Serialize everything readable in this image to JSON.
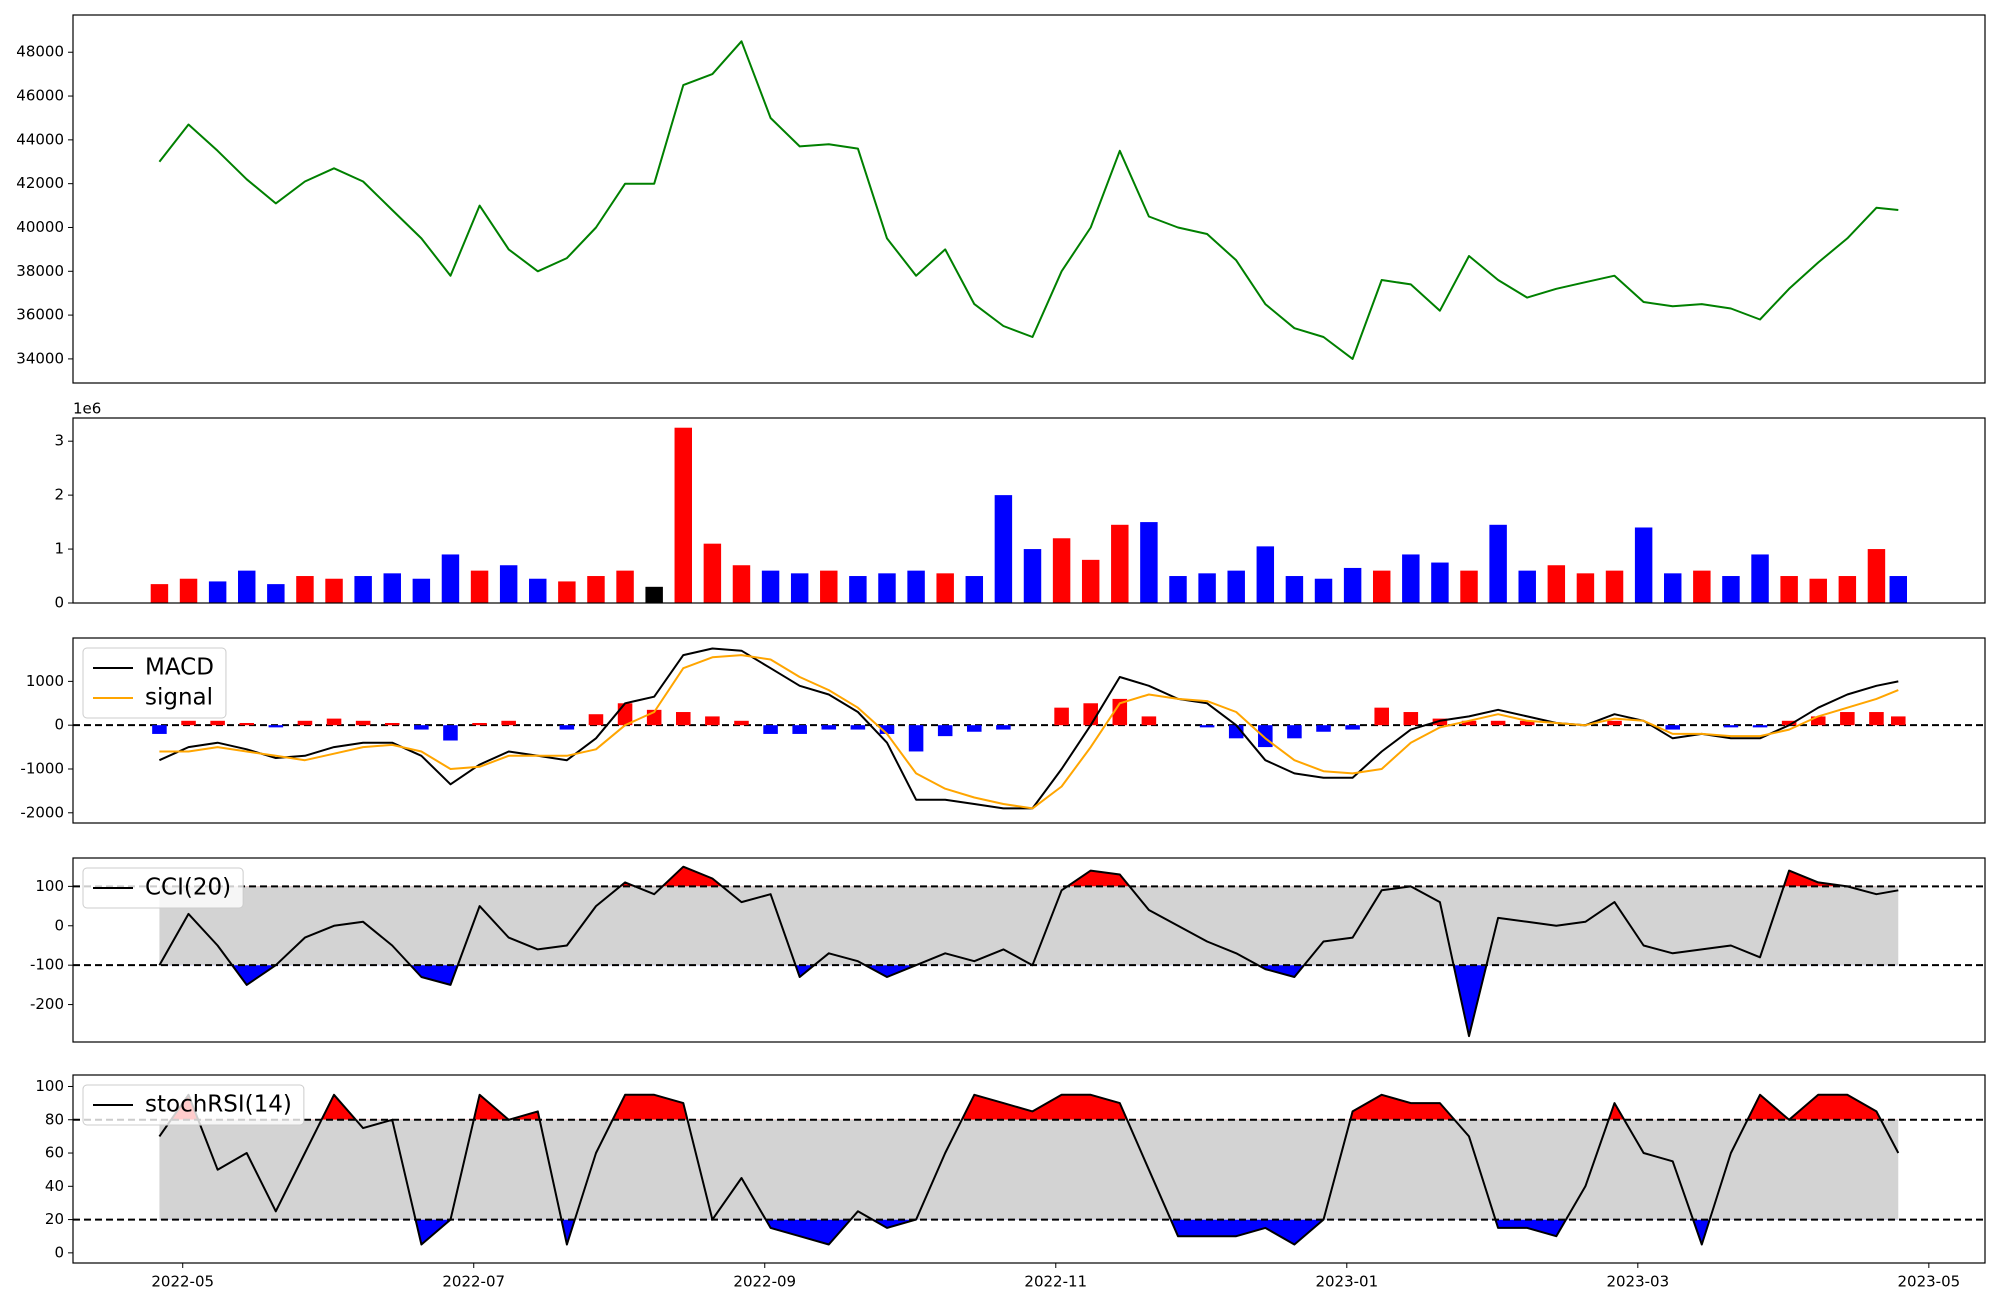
{
  "chart_data": [
    {
      "type": "line",
      "color": "#008000",
      "x": [
        4.84,
        5.04,
        5.24,
        5.44,
        5.64,
        5.84,
        6.04,
        6.24,
        6.44,
        6.64,
        6.84,
        7.04,
        7.24,
        7.44,
        7.64,
        7.84,
        8.04,
        8.24,
        8.44,
        8.64,
        8.84,
        9.04,
        9.24,
        9.44,
        9.64,
        9.84,
        10.04,
        10.24,
        10.44,
        10.64,
        10.84,
        11.04,
        11.24,
        11.44,
        11.64,
        11.84,
        12.04,
        12.24,
        12.44,
        12.64,
        12.84,
        13.04,
        13.24,
        13.44,
        13.64,
        13.84,
        14.04,
        14.24,
        14.44,
        14.64,
        14.84,
        15.04,
        15.24,
        15.44,
        15.64,
        15.84,
        16.04,
        16.24,
        16.44,
        16.64,
        16.79
      ],
      "values": [
        43000,
        44700,
        43500,
        42200,
        41100,
        42100,
        42700,
        42100,
        40800,
        39500,
        37800,
        41000,
        39000,
        38000,
        38600,
        40000,
        42000,
        42000,
        46500,
        47000,
        48500,
        45000,
        43700,
        43800,
        43600,
        39500,
        37800,
        39000,
        36500,
        35500,
        35000,
        38000,
        40000,
        43500,
        40500,
        40000,
        39700,
        38500,
        36500,
        35400,
        35000,
        34000,
        37600,
        37400,
        36200,
        38700,
        37600,
        36800,
        37200,
        37500,
        37800,
        36600,
        36400,
        36500,
        36300,
        35800,
        37200,
        38400,
        39500,
        40900,
        40800
      ],
      "xlim": [
        4.246,
        17.386
      ],
      "ylim": [
        32900,
        49700
      ],
      "yticks": [
        34000,
        36000,
        38000,
        40000,
        42000,
        44000,
        46000,
        48000
      ]
    },
    {
      "type": "bar",
      "offset_label": "1e6",
      "x": [
        4.84,
        5.04,
        5.24,
        5.44,
        5.64,
        5.84,
        6.04,
        6.24,
        6.44,
        6.64,
        6.84,
        7.04,
        7.24,
        7.44,
        7.64,
        7.84,
        8.04,
        8.24,
        8.44,
        8.64,
        8.84,
        9.04,
        9.24,
        9.44,
        9.64,
        9.84,
        10.04,
        10.24,
        10.44,
        10.64,
        10.84,
        11.04,
        11.24,
        11.44,
        11.64,
        11.84,
        12.04,
        12.24,
        12.44,
        12.64,
        12.84,
        13.04,
        13.24,
        13.44,
        13.64,
        13.84,
        14.04,
        14.24,
        14.44,
        14.64,
        14.84,
        15.04,
        15.24,
        15.44,
        15.64,
        15.84,
        16.04,
        16.24,
        16.44,
        16.64,
        16.79
      ],
      "values": [
        0.35,
        0.45,
        0.4,
        0.6,
        0.35,
        0.5,
        0.45,
        0.5,
        0.55,
        0.45,
        0.9,
        0.6,
        0.7,
        0.45,
        0.4,
        0.5,
        0.6,
        0.3,
        3.25,
        1.1,
        0.7,
        0.6,
        0.55,
        0.6,
        0.5,
        0.55,
        0.6,
        0.55,
        0.5,
        2.0,
        1.0,
        1.2,
        0.8,
        1.45,
        1.5,
        0.5,
        0.55,
        0.6,
        1.05,
        0.5,
        0.45,
        0.65,
        0.6,
        0.9,
        0.75,
        0.6,
        1.45,
        0.6,
        0.7,
        0.55,
        0.6,
        1.4,
        0.55,
        0.6,
        0.5,
        0.9,
        0.5,
        0.45,
        0.5,
        1.0,
        0.5
      ],
      "colors": [
        "red",
        "red",
        "blue",
        "blue",
        "blue",
        "red",
        "red",
        "blue",
        "blue",
        "blue",
        "blue",
        "red",
        "blue",
        "blue",
        "red",
        "red",
        "red",
        "black",
        "red",
        "red",
        "red",
        "blue",
        "blue",
        "red",
        "blue",
        "blue",
        "blue",
        "red",
        "blue",
        "blue",
        "blue",
        "red",
        "red",
        "red",
        "blue",
        "blue",
        "blue",
        "blue",
        "blue",
        "blue",
        "blue",
        "blue",
        "red",
        "blue",
        "blue",
        "red",
        "blue",
        "blue",
        "red",
        "red",
        "red",
        "blue",
        "blue",
        "red",
        "blue",
        "blue",
        "red",
        "red",
        "red",
        "red",
        "blue"
      ],
      "xlim": [
        4.246,
        17.386
      ],
      "ylim": [
        0,
        3.43
      ],
      "yticks": [
        0,
        1,
        2,
        3
      ]
    },
    {
      "type": "line",
      "x": [
        4.84,
        5.04,
        5.24,
        5.44,
        5.64,
        5.84,
        6.04,
        6.24,
        6.44,
        6.64,
        6.84,
        7.04,
        7.24,
        7.44,
        7.64,
        7.84,
        8.04,
        8.24,
        8.44,
        8.64,
        8.84,
        9.04,
        9.24,
        9.44,
        9.64,
        9.84,
        10.04,
        10.24,
        10.44,
        10.64,
        10.84,
        11.04,
        11.24,
        11.44,
        11.64,
        11.84,
        12.04,
        12.24,
        12.44,
        12.64,
        12.84,
        13.04,
        13.24,
        13.44,
        13.64,
        13.84,
        14.04,
        14.24,
        14.44,
        14.64,
        14.84,
        15.04,
        15.24,
        15.44,
        15.64,
        15.84,
        16.04,
        16.24,
        16.44,
        16.64,
        16.79
      ],
      "series": [
        {
          "name": "MACD",
          "color": "#000000",
          "values": [
            -800,
            -500,
            -400,
            -550,
            -750,
            -700,
            -500,
            -400,
            -400,
            -700,
            -1350,
            -900,
            -600,
            -700,
            -800,
            -300,
            500,
            650,
            1600,
            1750,
            1700,
            1300,
            900,
            700,
            300,
            -400,
            -1700,
            -1700,
            -1800,
            -1900,
            -1900,
            -1000,
            0,
            1100,
            900,
            600,
            500,
            0,
            -800,
            -1100,
            -1200,
            -1200,
            -600,
            -100,
            100,
            200,
            350,
            200,
            50,
            0,
            250,
            100,
            -300,
            -200,
            -300,
            -300,
            0,
            400,
            700,
            900,
            1000
          ]
        },
        {
          "name": "signal",
          "color": "#ffa500",
          "values": [
            -600,
            -600,
            -500,
            -600,
            -700,
            -800,
            -650,
            -500,
            -450,
            -600,
            -1000,
            -950,
            -700,
            -700,
            -700,
            -550,
            0,
            300,
            1300,
            1550,
            1600,
            1500,
            1100,
            800,
            400,
            -200,
            -1100,
            -1450,
            -1650,
            -1800,
            -1900,
            -1400,
            -500,
            500,
            700,
            600,
            550,
            300,
            -300,
            -800,
            -1050,
            -1100,
            -1000,
            -400,
            -50,
            100,
            250,
            100,
            50,
            0,
            150,
            100,
            -200,
            -200,
            -250,
            -250,
            -100,
            200,
            400,
            600,
            800
          ]
        }
      ],
      "histogram": {
        "pos_color": "#ff0000",
        "neg_color": "#0000ff",
        "values": [
          -200,
          100,
          100,
          50,
          -50,
          100,
          150,
          100,
          50,
          -100,
          -350,
          50,
          100,
          0,
          -100,
          250,
          500,
          350,
          300,
          200,
          100,
          -200,
          -200,
          -100,
          -100,
          -200,
          -600,
          -250,
          -150,
          -100,
          0,
          400,
          500,
          600,
          200,
          0,
          -50,
          -300,
          -500,
          -300,
          -150,
          -100,
          400,
          300,
          150,
          100,
          100,
          100,
          0,
          0,
          100,
          0,
          -100,
          0,
          -50,
          -50,
          100,
          200,
          300,
          300,
          200
        ]
      },
      "thresholds": [
        0
      ],
      "xlim": [
        4.246,
        17.386
      ],
      "ylim": [
        -2233,
        1990
      ],
      "yticks": [
        -2000,
        -1000,
        0,
        1000
      ],
      "legend": "upper left"
    },
    {
      "type": "line",
      "x": [
        4.84,
        5.04,
        5.24,
        5.44,
        5.64,
        5.84,
        6.04,
        6.24,
        6.44,
        6.64,
        6.84,
        7.04,
        7.24,
        7.44,
        7.64,
        7.84,
        8.04,
        8.24,
        8.44,
        8.64,
        8.84,
        9.04,
        9.24,
        9.44,
        9.64,
        9.84,
        10.04,
        10.24,
        10.44,
        10.64,
        10.84,
        11.04,
        11.24,
        11.44,
        11.64,
        11.84,
        12.04,
        12.24,
        12.44,
        12.64,
        12.84,
        13.04,
        13.24,
        13.44,
        13.64,
        13.84,
        14.04,
        14.24,
        14.44,
        14.64,
        14.84,
        15.04,
        15.24,
        15.44,
        15.64,
        15.84,
        16.04,
        16.24,
        16.44,
        16.64,
        16.79
      ],
      "series": [
        {
          "name": "CCI(20)",
          "color": "#000000",
          "values": [
            -100,
            30,
            -50,
            -150,
            -100,
            -30,
            0,
            10,
            -50,
            -130,
            -150,
            50,
            -30,
            -60,
            -50,
            50,
            110,
            80,
            150,
            120,
            60,
            80,
            -130,
            -70,
            -90,
            -130,
            -100,
            -70,
            -90,
            -60,
            -100,
            90,
            140,
            130,
            40,
            0,
            -40,
            -70,
            -110,
            -130,
            -40,
            -30,
            90,
            100,
            60,
            -280,
            20,
            10,
            0,
            10,
            60,
            -50,
            -70,
            -60,
            -50,
            -80,
            140,
            110,
            100,
            80,
            90
          ]
        }
      ],
      "thresholds": [
        -100,
        100
      ],
      "band_color": "#d3d3d3",
      "above_color": "#ff0000",
      "below_color": "#0000ff",
      "xlim": [
        4.246,
        17.386
      ],
      "ylim": [
        -295,
        172
      ],
      "yticks": [
        -200,
        -100,
        0,
        100
      ],
      "legend": "upper left"
    },
    {
      "type": "line",
      "x": [
        4.84,
        5.04,
        5.24,
        5.44,
        5.64,
        5.84,
        6.04,
        6.24,
        6.44,
        6.64,
        6.84,
        7.04,
        7.24,
        7.44,
        7.64,
        7.84,
        8.04,
        8.24,
        8.44,
        8.64,
        8.84,
        9.04,
        9.24,
        9.44,
        9.64,
        9.84,
        10.04,
        10.24,
        10.44,
        10.64,
        10.84,
        11.04,
        11.24,
        11.44,
        11.64,
        11.84,
        12.04,
        12.24,
        12.44,
        12.64,
        12.84,
        13.04,
        13.24,
        13.44,
        13.64,
        13.84,
        14.04,
        14.24,
        14.44,
        14.64,
        14.84,
        15.04,
        15.24,
        15.44,
        15.64,
        15.84,
        16.04,
        16.24,
        16.44,
        16.64,
        16.79
      ],
      "series": [
        {
          "name": "stochRSI(14)",
          "color": "#000000",
          "values": [
            70,
            95,
            50,
            60,
            25,
            60,
            95,
            75,
            80,
            5,
            20,
            95,
            80,
            85,
            5,
            60,
            95,
            95,
            90,
            20,
            45,
            15,
            10,
            5,
            25,
            15,
            20,
            60,
            95,
            90,
            85,
            95,
            95,
            90,
            50,
            10,
            10,
            10,
            15,
            5,
            20,
            85,
            95,
            90,
            90,
            70,
            15,
            15,
            10,
            40,
            90,
            60,
            55,
            5,
            60,
            95,
            80,
            95,
            95,
            85,
            60
          ]
        }
      ],
      "thresholds": [
        20,
        80
      ],
      "band_color": "#d3d3d3",
      "above_color": "#ff0000",
      "below_color": "#0000ff",
      "xlim": [
        4.246,
        17.386
      ],
      "ylim": [
        -6.1,
        106.9
      ],
      "yticks": [
        0,
        20,
        40,
        60,
        80,
        100
      ],
      "legend": "upper left",
      "xticks": [
        {
          "value": 5,
          "label": "2022-05"
        },
        {
          "value": 7,
          "label": "2022-07"
        },
        {
          "value": 9,
          "label": "2022-09"
        },
        {
          "value": 11,
          "label": "2022-11"
        },
        {
          "value": 13,
          "label": "2023-01"
        },
        {
          "value": 15,
          "label": "2023-03"
        },
        {
          "value": 17,
          "label": "2023-05"
        }
      ]
    }
  ]
}
